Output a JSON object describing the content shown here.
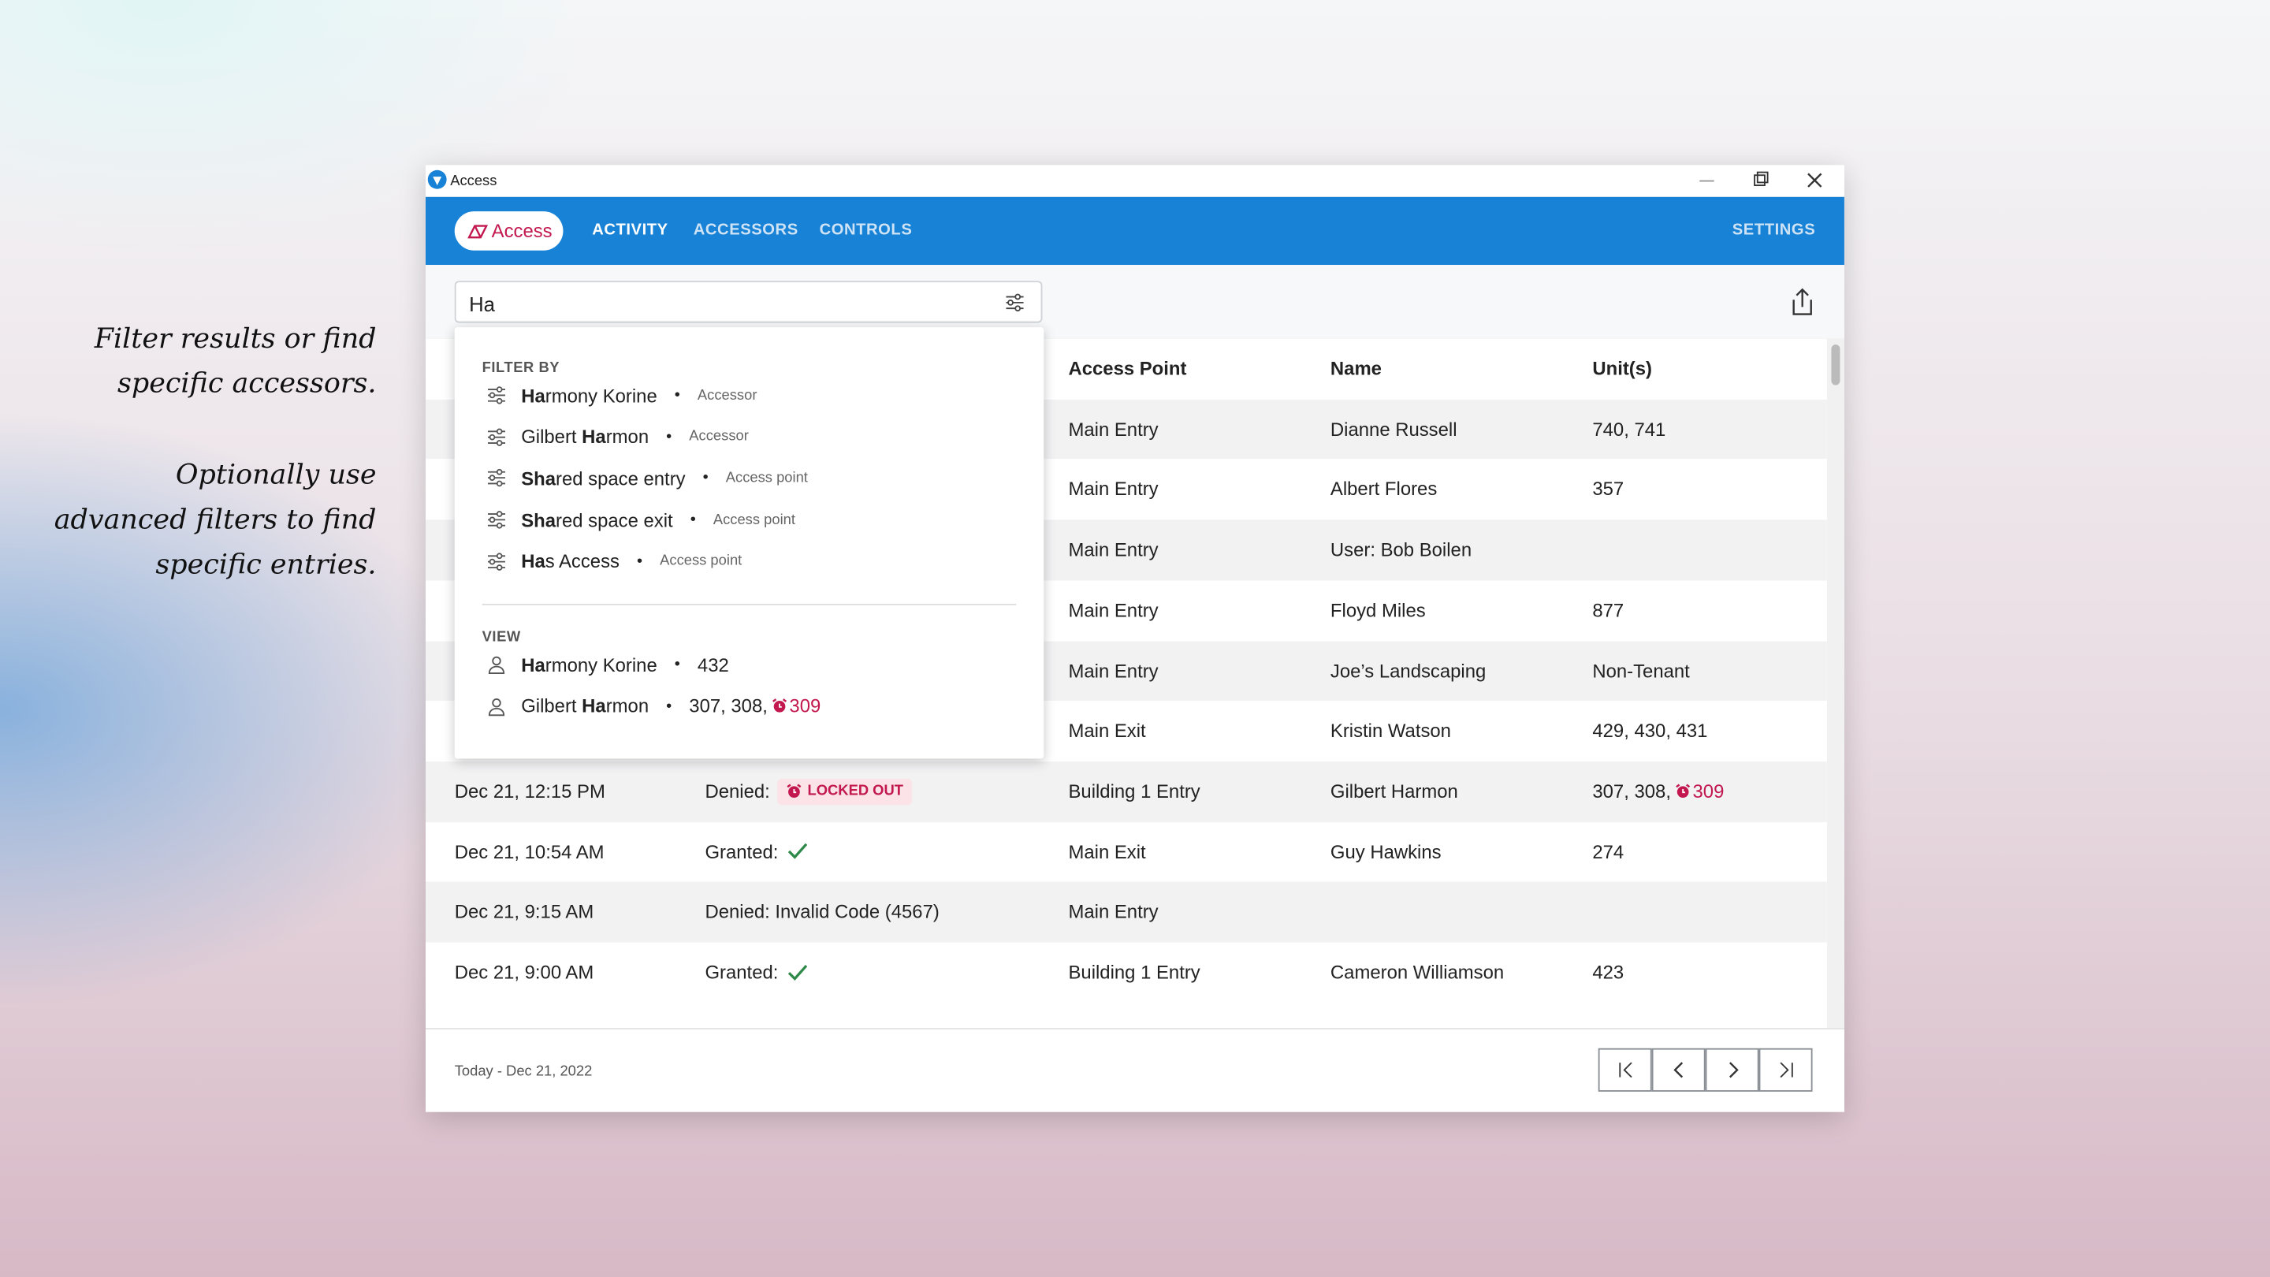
{
  "annotations": [
    "Filter results or find specific accessors.",
    "Optionally use advanced filters to find specific entries."
  ],
  "window": {
    "title": "Access"
  },
  "nav": {
    "logo": "Access",
    "tabs": [
      "ACTIVITY",
      "ACCESSORS",
      "CONTROLS"
    ],
    "settings": "SETTINGS"
  },
  "search": {
    "value": "Ha"
  },
  "table": {
    "headers": {
      "access_point": "Access Point",
      "name": "Name",
      "units": "Unit(s)"
    },
    "rows": [
      {
        "access_point": "Main Entry",
        "name": "Dianne Russell",
        "units": "740, 741"
      },
      {
        "access_point": "Main Entry",
        "name": "Albert Flores",
        "units": "357"
      },
      {
        "access_point": "Main Entry",
        "name": "User: Bob Boilen"
      },
      {
        "access_point": "Main Entry",
        "name": "Floyd Miles",
        "units": "877"
      },
      {
        "access_point": "Main Entry",
        "name": "Joe’s Landscaping",
        "units": "Non-Tenant"
      },
      {
        "access_point": "Main Exit",
        "name": "Kristin Watson",
        "units": "429, 430, 431"
      },
      {
        "time": "Dec 21, 12:15 PM",
        "status": "Denied:",
        "badge": "LOCKED OUT",
        "access_point": "Building 1 Entry",
        "name": "Gilbert Harmon",
        "units": "307, 308,",
        "alert_unit": "309"
      },
      {
        "time": "Dec 21, 10:54 AM",
        "status": "Granted:",
        "icon": "check",
        "access_point": "Main Exit",
        "name": "Guy Hawkins",
        "units": "274"
      },
      {
        "time": "Dec 21, 9:15 AM",
        "status": "Denied: Invalid Code (4567)",
        "access_point": "Main Entry"
      },
      {
        "time": "Dec 21, 9:00 AM",
        "status": "Granted:",
        "icon": "check",
        "access_point": "Building 1 Entry",
        "name": "Cameron Williamson",
        "units": "423"
      }
    ]
  },
  "dropdown": {
    "filter_title": "FILTER BY",
    "filters": [
      {
        "bold": "Ha",
        "rest": "rmony Korine",
        "type": "Accessor"
      },
      {
        "lead": "Gilbert ",
        "bold": "Ha",
        "rest": "rmon",
        "type": "Accessor"
      },
      {
        "bold": "Sha",
        "rest": "red space entry",
        "type": "Access point"
      },
      {
        "bold": "Sha",
        "rest": "red space exit",
        "type": "Access point"
      },
      {
        "bold": "Ha",
        "rest": "s Access",
        "type": "Access point"
      }
    ],
    "view_title": "VIEW",
    "views": [
      {
        "bold": "Ha",
        "rest": "rmony Korine",
        "units": "432"
      },
      {
        "lead": "Gilbert ",
        "bold": "Ha",
        "rest": "rmon",
        "units": "307, 308,",
        "alert_unit": "309"
      }
    ]
  },
  "footer": {
    "range": "Today - Dec 21, 2022"
  }
}
